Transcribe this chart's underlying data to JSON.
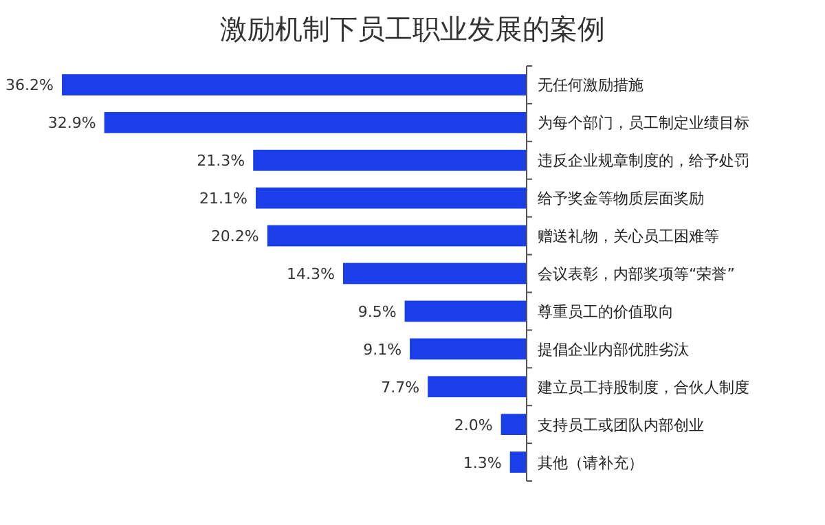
{
  "chart_data": {
    "type": "bar",
    "orientation": "horizontal",
    "title": "激励机制下员工职业发展的案例",
    "categories": [
      "无任何激励措施",
      "为每个部门，员工制定业绩目标",
      "违反企业规章制度的，给予处罚",
      "给予奖金等物质层面奖励",
      "赠送礼物，关心员工困难等",
      "会议表彰，内部奖项等“荣誉”",
      "尊重员工的价值取向",
      "提倡企业内部优胜劣汰",
      "建立员工持股制度，合伙人制度",
      "支持员工或团队内部创业",
      "其他（请补充）"
    ],
    "values": [
      36.2,
      32.9,
      21.3,
      21.1,
      20.2,
      14.3,
      9.5,
      9.1,
      7.7,
      2.0,
      1.3
    ],
    "value_labels": [
      "36.2%",
      "32.9%",
      "21.3%",
      "21.1%",
      "20.2%",
      "14.3%",
      "9.5%",
      "9.1%",
      "7.7%",
      "2.0%",
      "1.3%"
    ],
    "color": "#1a3ee8"
  }
}
